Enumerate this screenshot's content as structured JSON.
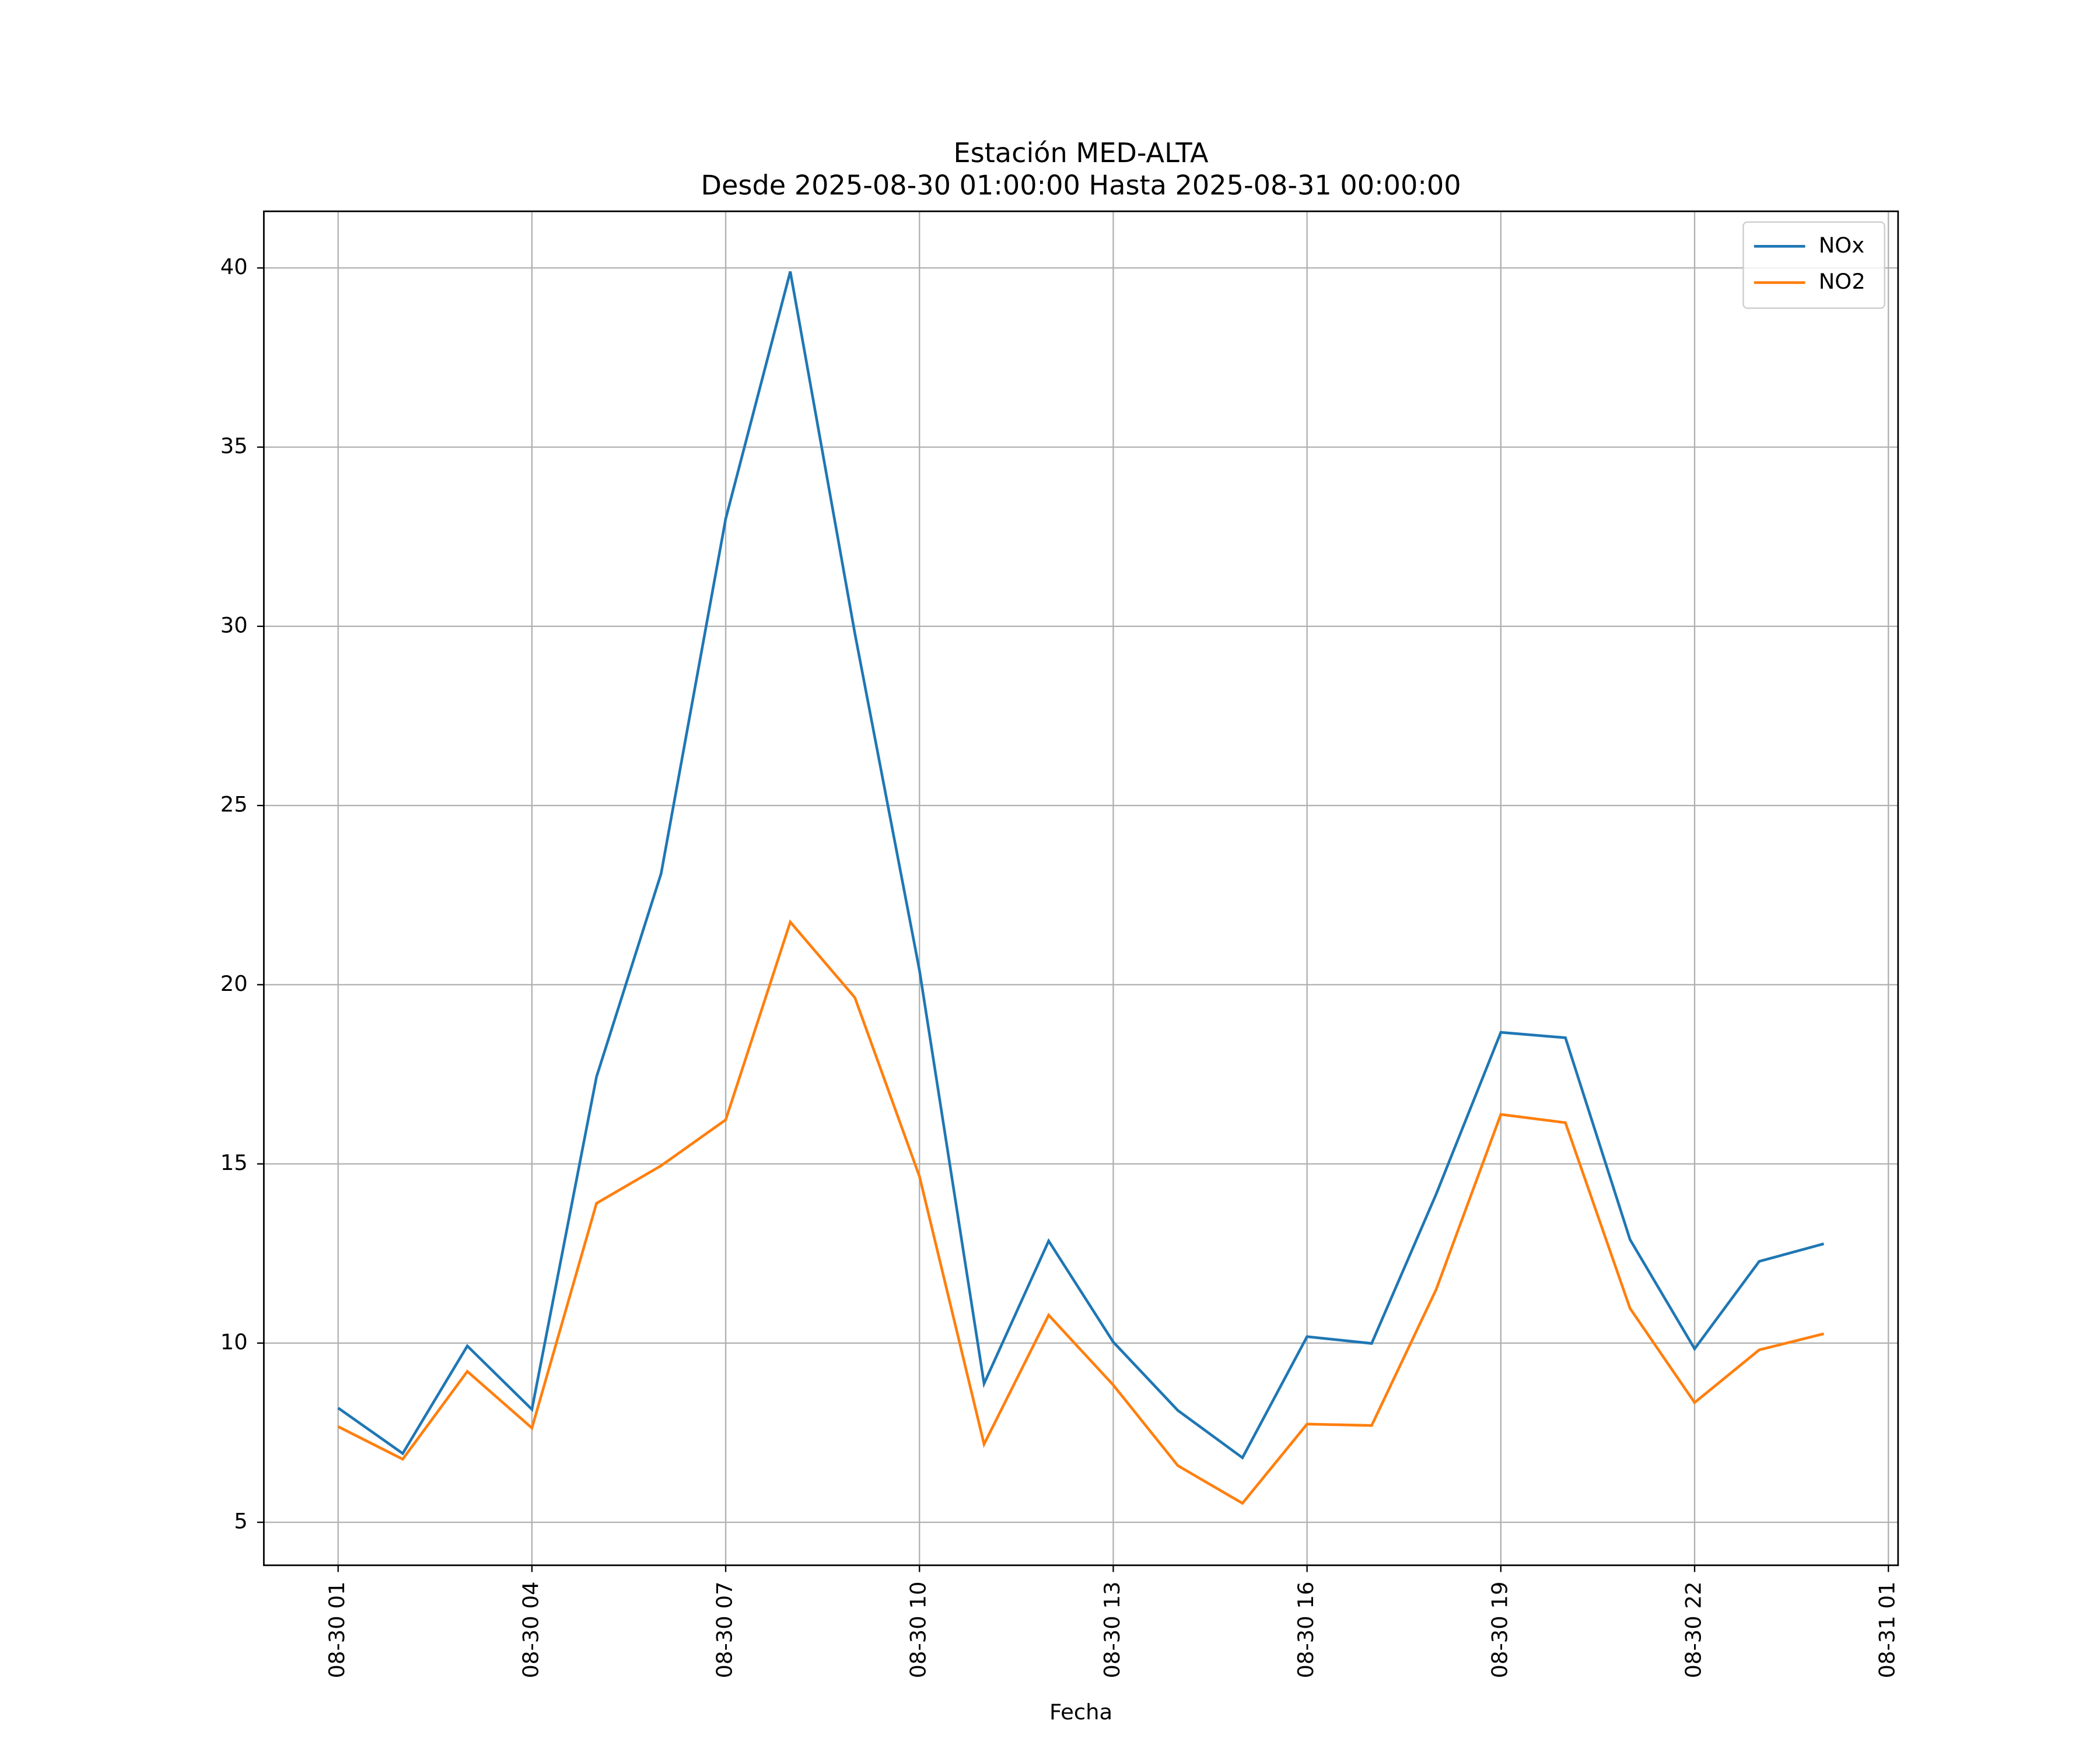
{
  "chart_data": {
    "type": "line",
    "title": "Estación MED-ALTA",
    "subtitle": "Desde 2025-08-30 01:00:00 Hasta 2025-08-31 00:00:00",
    "x_label": "Fecha",
    "x": [
      1,
      2,
      3,
      4,
      5,
      6,
      7,
      8,
      9,
      10,
      11,
      12,
      13,
      14,
      15,
      16,
      17,
      18,
      19,
      20,
      21,
      22,
      23,
      24
    ],
    "series": [
      {
        "name": "NOx",
        "color": "#1f77b4",
        "values": [
          8.19,
          6.92,
          9.92,
          8.15,
          17.43,
          23.1,
          33.0,
          39.9,
          29.8,
          20.4,
          8.87,
          12.85,
          10.03,
          8.12,
          6.8,
          10.18,
          9.99,
          14.16,
          18.67,
          18.52,
          12.89,
          9.84,
          12.28,
          12.77
        ]
      },
      {
        "name": "NO2",
        "color": "#ff7f0e",
        "values": [
          7.67,
          6.76,
          9.21,
          7.63,
          13.9,
          14.95,
          16.23,
          21.75,
          19.64,
          14.65,
          7.18,
          10.78,
          8.83,
          6.58,
          5.53,
          7.74,
          7.7,
          11.5,
          16.38,
          16.15,
          10.97,
          8.34,
          9.81,
          10.26
        ]
      }
    ],
    "xlim": [
      -0.15,
      25.15
    ],
    "xticks": [
      {
        "value": 1,
        "label": "08-30 01"
      },
      {
        "value": 4,
        "label": "08-30 04"
      },
      {
        "value": 7,
        "label": "08-30 07"
      },
      {
        "value": 10,
        "label": "08-30 10"
      },
      {
        "value": 13,
        "label": "08-30 13"
      },
      {
        "value": 16,
        "label": "08-30 16"
      },
      {
        "value": 19,
        "label": "08-30 19"
      },
      {
        "value": 22,
        "label": "08-30 22"
      },
      {
        "value": 25,
        "label": "08-31 01"
      }
    ],
    "ylim": [
      3.8,
      41.58
    ],
    "yticks": [
      5,
      10,
      15,
      20,
      25,
      30,
      35,
      40
    ],
    "grid": true,
    "legend": "upper-right"
  }
}
